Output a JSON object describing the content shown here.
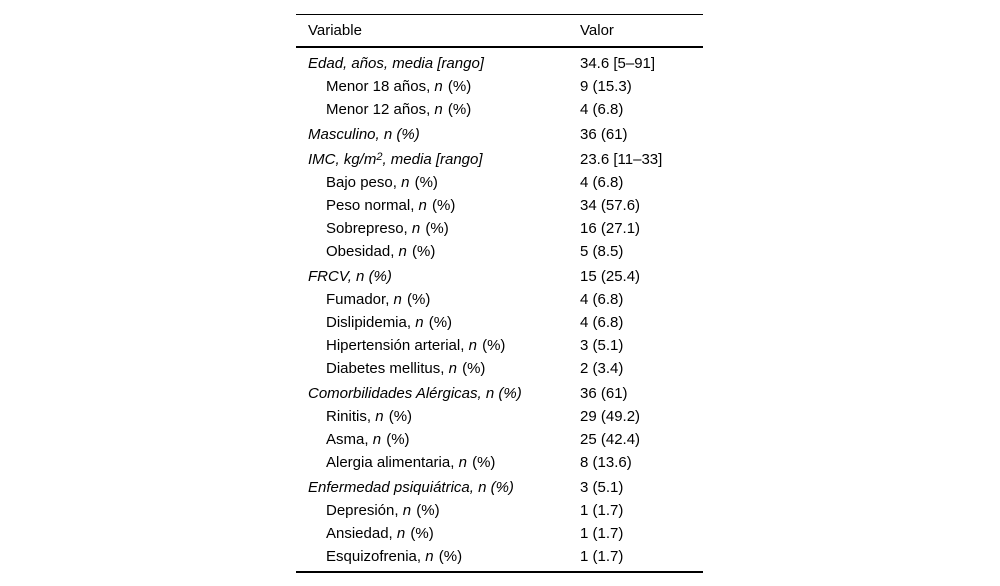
{
  "colors": {
    "background": "#ffffff",
    "text": "#000000",
    "rule": "#000000"
  },
  "table": {
    "header": {
      "variable": "Variable",
      "valor": "Valor"
    },
    "rows": [
      {
        "group": true,
        "value": "34.6 [5–91]",
        "parts": [
          [
            "t",
            "Edad, años, media [rango]"
          ]
        ]
      },
      {
        "group": false,
        "value": "9 (15.3)",
        "parts": [
          [
            "t",
            "Menor 18 años, "
          ],
          [
            "i",
            "n"
          ],
          [
            "t",
            " (%)"
          ]
        ]
      },
      {
        "group": false,
        "value": "4 (6.8)",
        "parts": [
          [
            "t",
            "Menor 12 años, "
          ],
          [
            "i",
            "n"
          ],
          [
            "t",
            " (%)"
          ]
        ]
      },
      {
        "group": true,
        "value": "36 (61)",
        "parts": [
          [
            "t",
            "Masculino, n (%)"
          ]
        ]
      },
      {
        "group": true,
        "value": "23.6 [11–33]",
        "parts": [
          [
            "t",
            "IMC, kg/m"
          ],
          [
            "s",
            "2"
          ],
          [
            "t",
            ", media [rango]"
          ]
        ]
      },
      {
        "group": false,
        "value": "4 (6.8)",
        "parts": [
          [
            "t",
            "Bajo peso, "
          ],
          [
            "i",
            "n"
          ],
          [
            "t",
            " (%)"
          ]
        ]
      },
      {
        "group": false,
        "value": "34 (57.6)",
        "parts": [
          [
            "t",
            "Peso normal, "
          ],
          [
            "i",
            "n"
          ],
          [
            "t",
            " (%)"
          ]
        ]
      },
      {
        "group": false,
        "value": "16 (27.1)",
        "parts": [
          [
            "t",
            "Sobrepreso, "
          ],
          [
            "i",
            "n"
          ],
          [
            "t",
            " (%)"
          ]
        ]
      },
      {
        "group": false,
        "value": "5 (8.5)",
        "parts": [
          [
            "t",
            "Obesidad, "
          ],
          [
            "i",
            "n"
          ],
          [
            "t",
            " (%)"
          ]
        ]
      },
      {
        "group": true,
        "value": "15 (25.4)",
        "parts": [
          [
            "t",
            "FRCV, n (%)"
          ]
        ]
      },
      {
        "group": false,
        "value": "4 (6.8)",
        "parts": [
          [
            "t",
            "Fumador, "
          ],
          [
            "i",
            "n"
          ],
          [
            "t",
            " (%)"
          ]
        ]
      },
      {
        "group": false,
        "value": "4 (6.8)",
        "parts": [
          [
            "t",
            "Dislipidemia, "
          ],
          [
            "i",
            "n"
          ],
          [
            "t",
            " (%)"
          ]
        ]
      },
      {
        "group": false,
        "value": "3 (5.1)",
        "parts": [
          [
            "t",
            "Hipertensión arterial, "
          ],
          [
            "i",
            "n"
          ],
          [
            "t",
            " (%)"
          ]
        ]
      },
      {
        "group": false,
        "value": "2 (3.4)",
        "parts": [
          [
            "t",
            "Diabetes mellitus, "
          ],
          [
            "i",
            "n"
          ],
          [
            "t",
            " (%)"
          ]
        ]
      },
      {
        "group": true,
        "value": "36 (61)",
        "parts": [
          [
            "t",
            "Comorbilidades Alérgicas, n (%)"
          ]
        ]
      },
      {
        "group": false,
        "value": "29 (49.2)",
        "parts": [
          [
            "t",
            "Rinitis, "
          ],
          [
            "i",
            "n"
          ],
          [
            "t",
            " (%)"
          ]
        ]
      },
      {
        "group": false,
        "value": "25 (42.4)",
        "parts": [
          [
            "t",
            "Asma, "
          ],
          [
            "i",
            "n"
          ],
          [
            "t",
            " (%)"
          ]
        ]
      },
      {
        "group": false,
        "value": "8 (13.6)",
        "parts": [
          [
            "t",
            "Alergia alimentaria, "
          ],
          [
            "i",
            "n"
          ],
          [
            "t",
            " (%)"
          ]
        ]
      },
      {
        "group": true,
        "value": "3 (5.1)",
        "parts": [
          [
            "t",
            "Enfermedad psiquiátrica, n (%)"
          ]
        ]
      },
      {
        "group": false,
        "value": "1 (1.7)",
        "parts": [
          [
            "t",
            "Depresión, "
          ],
          [
            "i",
            "n"
          ],
          [
            "t",
            " (%)"
          ]
        ]
      },
      {
        "group": false,
        "value": "1 (1.7)",
        "parts": [
          [
            "t",
            "Ansiedad, "
          ],
          [
            "i",
            "n"
          ],
          [
            "t",
            " (%)"
          ]
        ]
      },
      {
        "group": false,
        "value": "1 (1.7)",
        "parts": [
          [
            "t",
            "Esquizofrenia, "
          ],
          [
            "i",
            "n"
          ],
          [
            "t",
            " (%)"
          ]
        ]
      }
    ]
  }
}
